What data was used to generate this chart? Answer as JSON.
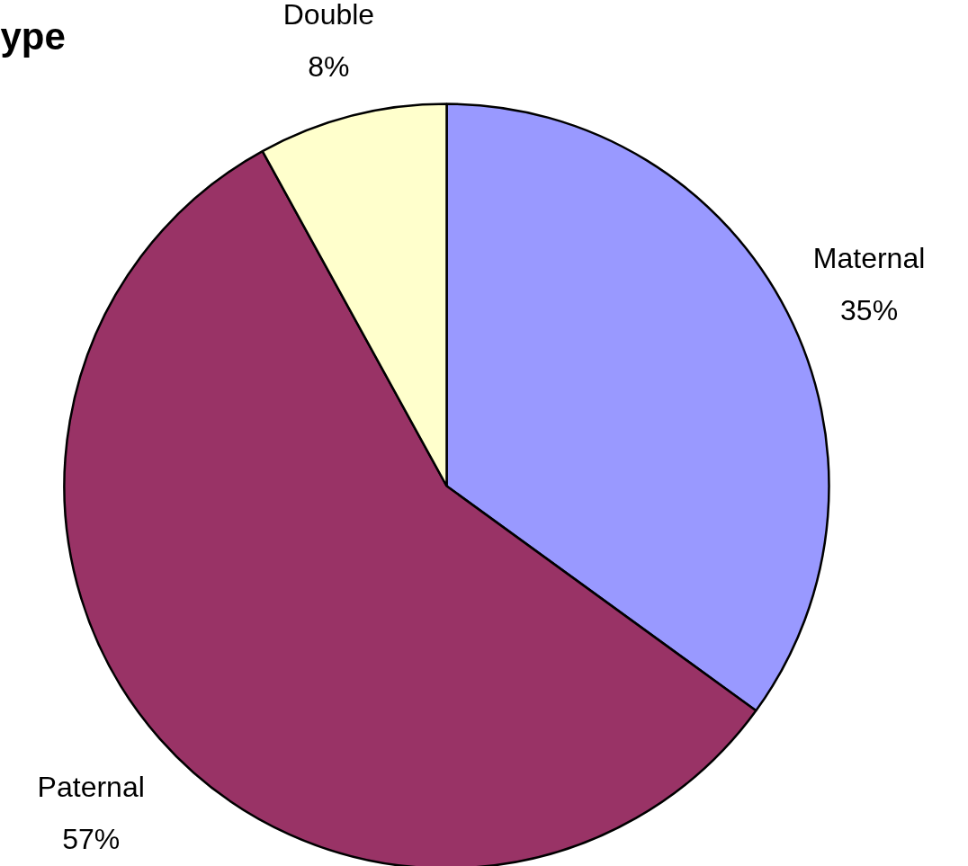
{
  "chart_data": {
    "type": "pie",
    "title": "ype",
    "categories": [
      "Maternal",
      "Paternal",
      "Double"
    ],
    "values": [
      35,
      57,
      8
    ],
    "colors": [
      "#9999ff",
      "#993366",
      "#ffffcc"
    ],
    "value_labels": [
      "35%",
      "57%",
      "8%"
    ]
  }
}
